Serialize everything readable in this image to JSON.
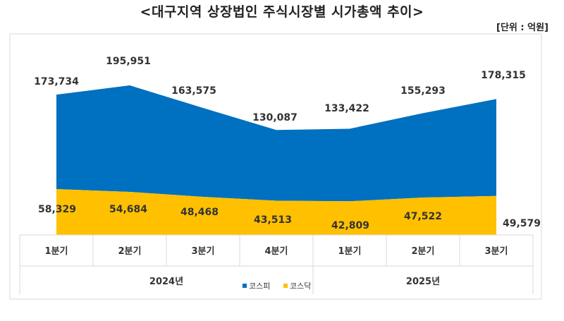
{
  "title": "<대구지역 상장법인 주식시장별 시가총액 추이>",
  "unit": "[단위 : 억원]",
  "colors": {
    "kospi": "#0070C0",
    "kosdaq": "#FFC000",
    "grid": "#d9d9d9"
  },
  "chart_data": {
    "type": "area",
    "title": "<대구지역 상장법인 주식시장별 시가총액 추이>",
    "unit": "[단위 : 억원]",
    "stacked": true,
    "categories": [
      "1분기",
      "2분기",
      "3분기",
      "4분기",
      "1분기",
      "2분기",
      "3분기"
    ],
    "groups": [
      {
        "label": "2024년",
        "span": 4
      },
      {
        "label": "2025년",
        "span": 3
      }
    ],
    "series": [
      {
        "name": "코스피",
        "values": [
          173734,
          195951,
          163575,
          130087,
          133422,
          155293,
          178315
        ]
      },
      {
        "name": "코스닥",
        "values": [
          58329,
          54684,
          48468,
          43513,
          42809,
          47522,
          49579
        ]
      }
    ],
    "value_labels": {
      "kospi": [
        "173,734",
        "195,951",
        "163,575",
        "130,087",
        "133,422",
        "155,293",
        "178,315"
      ],
      "kosdaq": [
        "58,329",
        "54,684",
        "48,468",
        "43,513",
        "42,809",
        "47,522",
        "49,579"
      ]
    },
    "legend": [
      "코스피",
      "코스닥"
    ],
    "legend_position": "bottom"
  }
}
